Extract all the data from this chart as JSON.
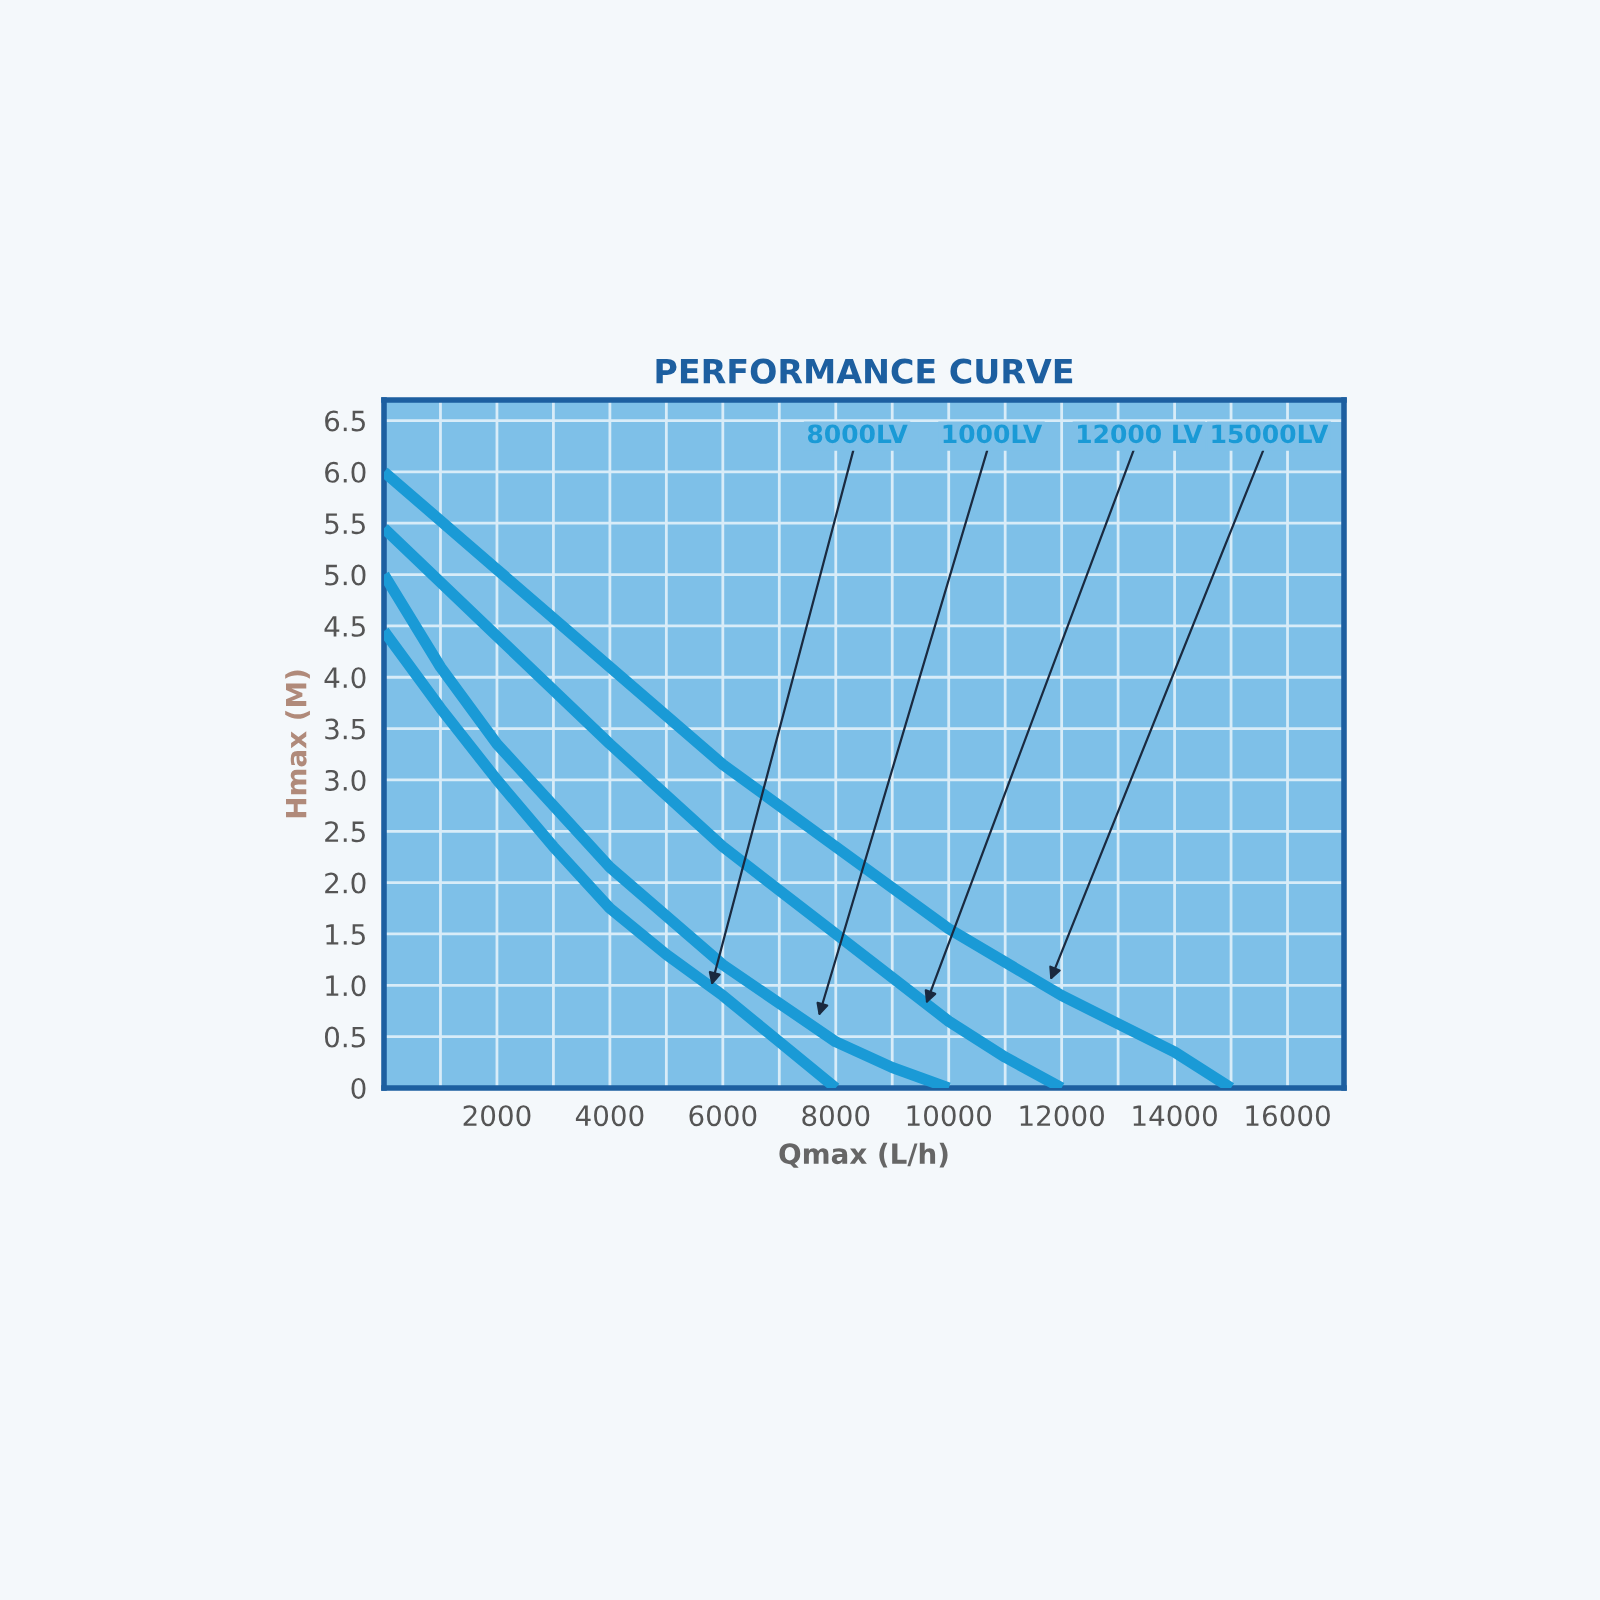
{
  "chart_data": {
    "type": "line",
    "title": "PERFORMANCE CURVE",
    "xlabel": "Qmax (L/h)",
    "ylabel": "Hmax (M)",
    "series": [
      {
        "color": "#1a9ad6",
        "x": [
          0,
          1000,
          2000,
          3000,
          4000,
          5000,
          6000,
          7000,
          8000
        ],
        "values": [
          4.45,
          3.7,
          3.0,
          2.35,
          1.75,
          1.3,
          0.9,
          0.45,
          0
        ]
      },
      {
        "color": "#1a9ad6",
        "x": [
          0,
          1000,
          2000,
          4000,
          6000,
          8000,
          9000,
          10000
        ],
        "values": [
          5.0,
          4.1,
          3.35,
          2.15,
          1.2,
          0.45,
          0.2,
          0
        ]
      },
      {
        "color": "#1a9ad6",
        "x": [
          0,
          2000,
          4000,
          6000,
          8000,
          10000,
          11000,
          12000
        ],
        "values": [
          5.45,
          4.4,
          3.35,
          2.35,
          1.5,
          0.65,
          0.3,
          0
        ]
      },
      {
        "color": "#1a9ad6",
        "x": [
          0,
          2000,
          4000,
          6000,
          8000,
          10000,
          12000,
          14000,
          15000
        ],
        "values": [
          6.0,
          5.05,
          4.1,
          3.15,
          2.35,
          1.55,
          0.9,
          0.35,
          0
        ]
      }
    ],
    "annotations": [
      {
        "text": "8000LV",
        "x": 5800,
        "y": 1.0
      },
      {
        "text": "1000LV",
        "x": 7700,
        "y": 0.7
      },
      {
        "text": "12000 LV",
        "x": 9600,
        "y": 0.82
      },
      {
        "text": "15000LV",
        "x": 11800,
        "y": 1.05
      }
    ],
    "xlim": [
      0,
      17000
    ],
    "ylim": [
      0,
      6.7
    ],
    "xticks": [
      {
        "value": 1000,
        "label": null
      },
      2000,
      {
        "value": 3000,
        "label": null
      },
      4000,
      {
        "value": 5000,
        "label": null
      },
      6000,
      {
        "value": 7000,
        "label": null
      },
      8000,
      {
        "value": 9000,
        "label": null
      },
      10000,
      {
        "value": 11000,
        "label": null
      },
      12000,
      {
        "value": 13000,
        "label": null
      },
      14000,
      {
        "value": 15000,
        "label": null
      },
      16000
    ],
    "yticks": [
      0,
      0.5,
      {
        "value": 1,
        "label": "1.0"
      },
      1.5,
      {
        "value": 2,
        "label": "2.0"
      },
      2.5,
      {
        "value": 3,
        "label": "3.0"
      },
      3.5,
      {
        "value": 4,
        "label": "4.0"
      },
      4.5,
      {
        "value": 5,
        "label": "5.0"
      },
      5.5,
      {
        "value": 6,
        "label": "6.0"
      },
      6.5
    ],
    "grid": true,
    "line_style": "solid",
    "marker": "none",
    "legend": false
  }
}
